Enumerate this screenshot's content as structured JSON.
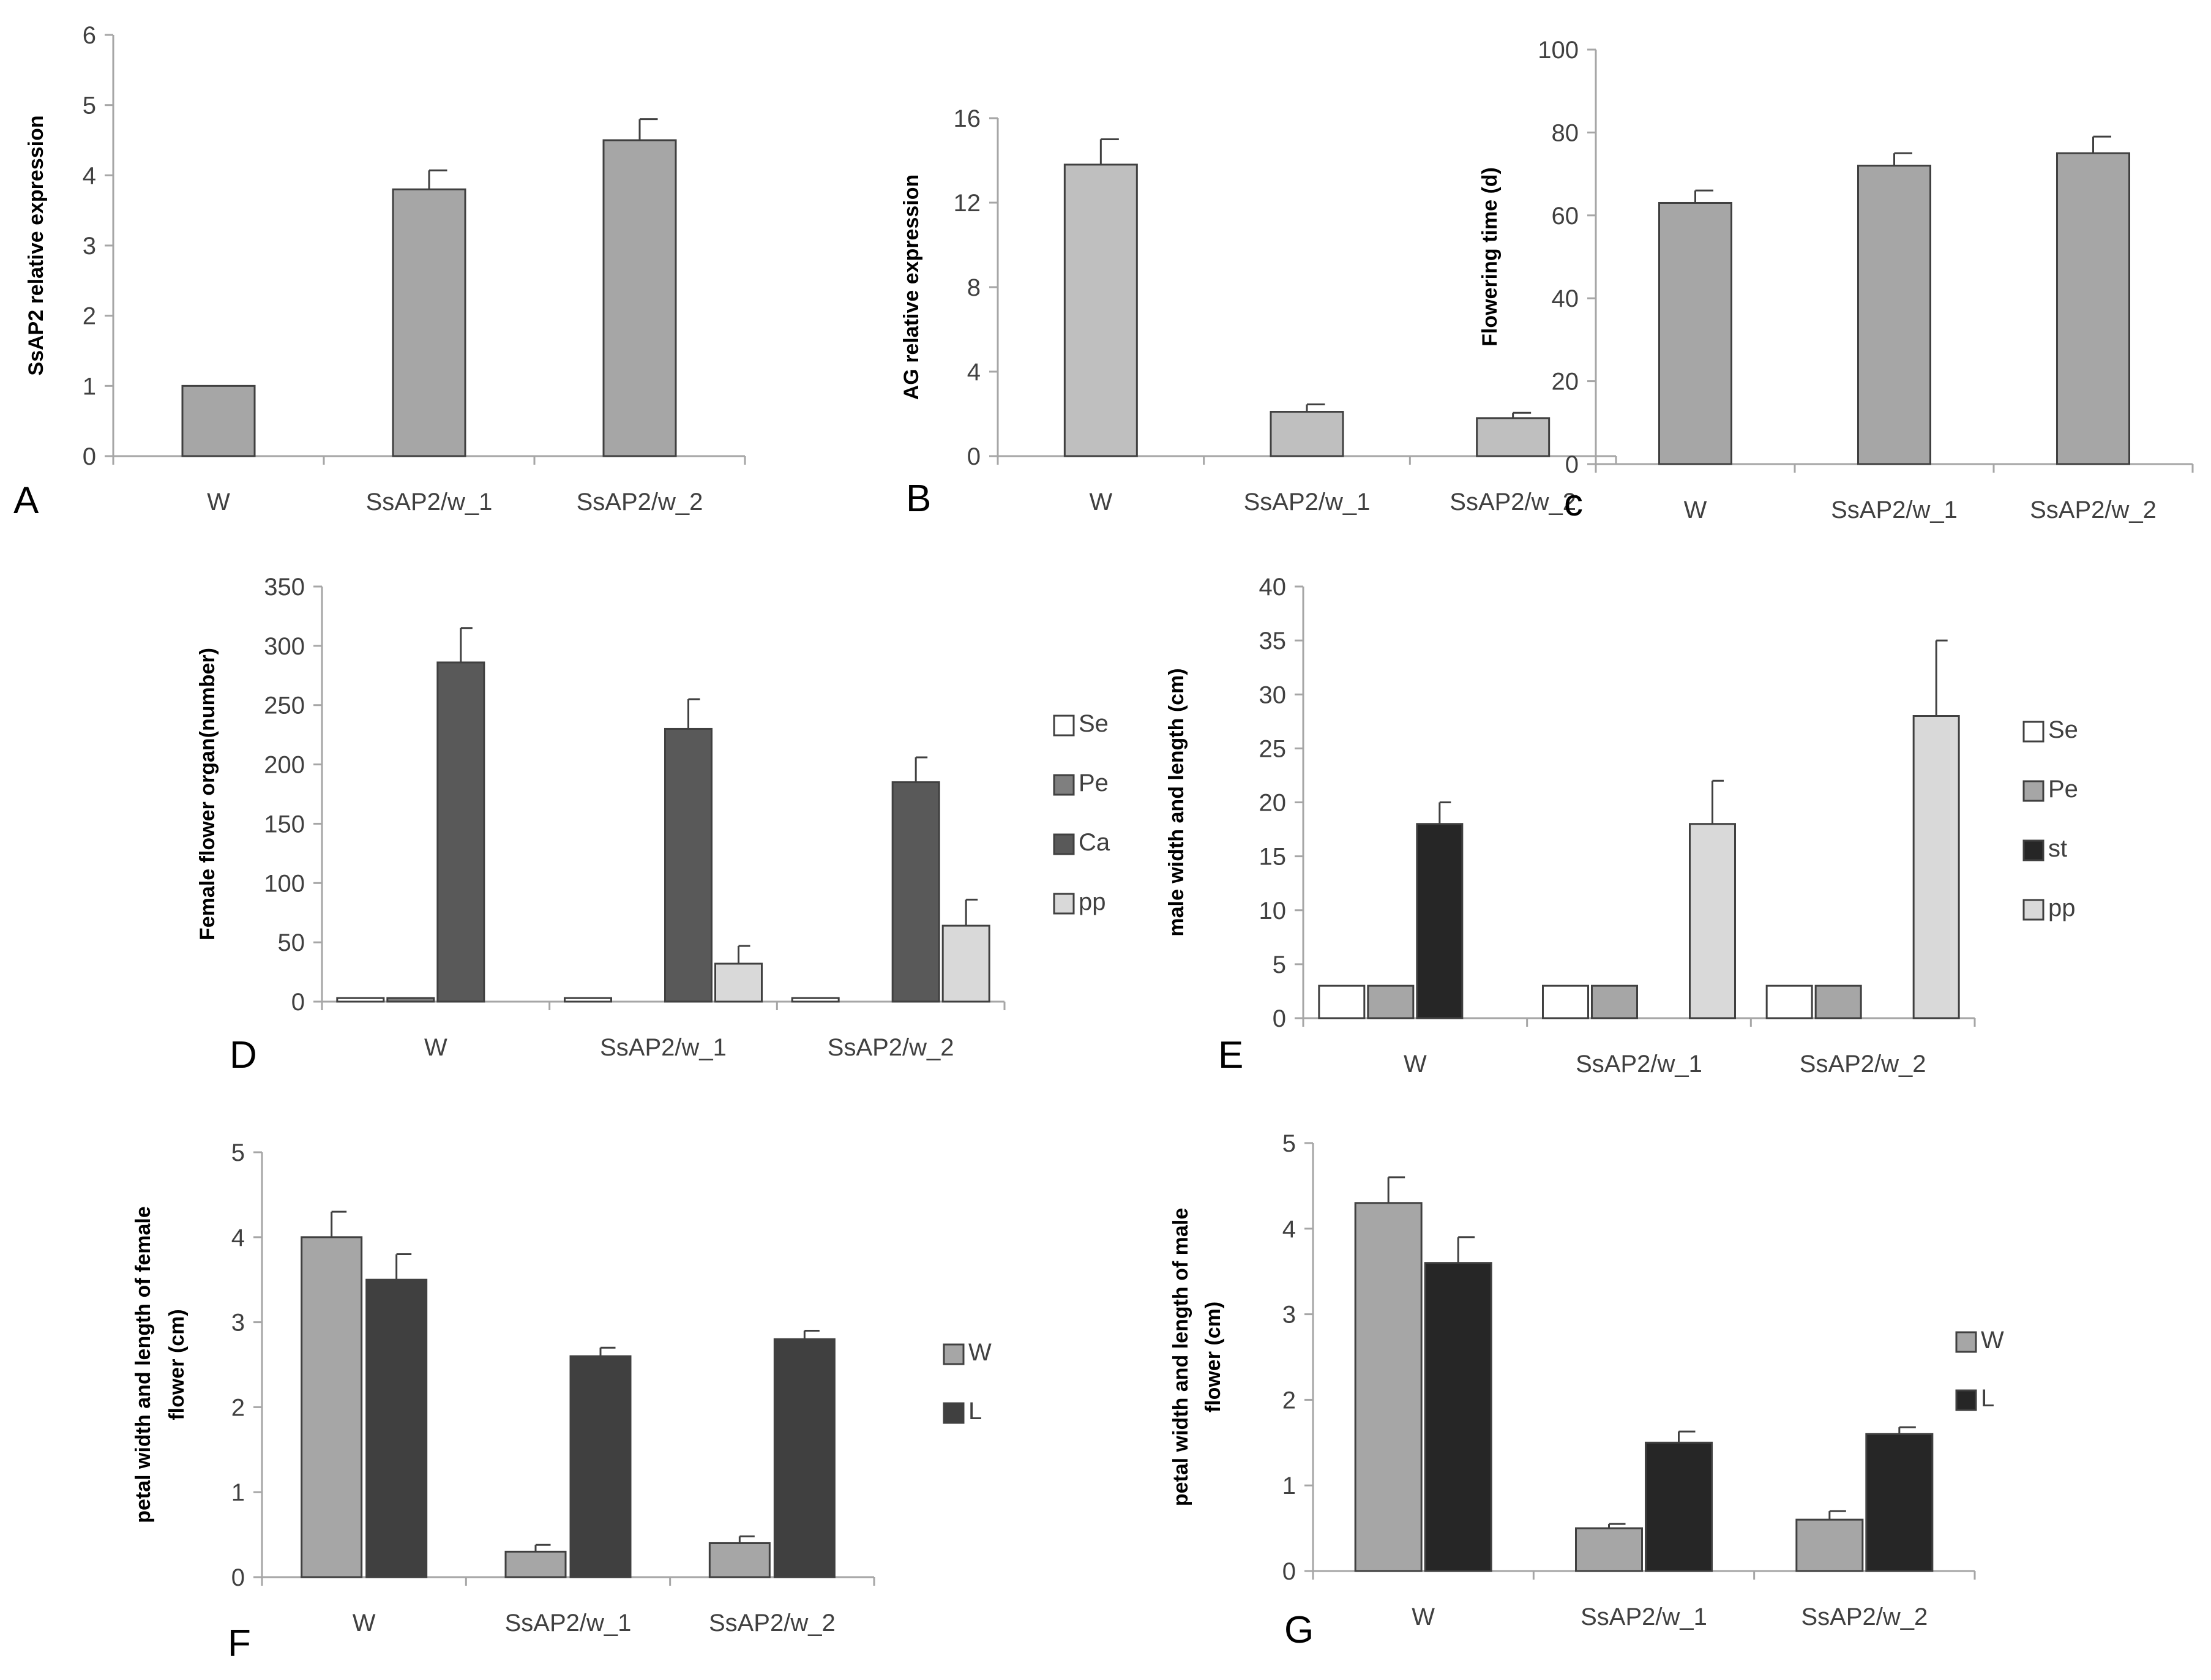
{
  "chart_data": [
    {
      "type": "bar",
      "panel_label": "A",
      "ylabel": "SsAP2  relative expression",
      "categories": [
        "W",
        "SsAP2/w_1",
        "SsAP2/w_2"
      ],
      "ylim": [
        0,
        6
      ],
      "yticks": [
        "0",
        "1",
        "2",
        "3",
        "4",
        "5",
        "6"
      ],
      "series": [
        {
          "values": [
            1.0,
            3.8,
            4.5
          ],
          "errors": [
            0,
            0.27,
            0.3
          ],
          "color": "#a6a6a6"
        }
      ]
    },
    {
      "type": "bar",
      "panel_label": "B",
      "ylabel": "AG  relative expression",
      "categories": [
        "W",
        "SsAP2/w_1",
        "SsAP2/w_2"
      ],
      "ylim": [
        0,
        16
      ],
      "yticks": [
        "0",
        "4",
        "8",
        "12",
        "16"
      ],
      "series": [
        {
          "values": [
            13.8,
            2.1,
            1.8
          ],
          "errors": [
            1.2,
            0.35,
            0.25
          ],
          "color": "#bfbfbf"
        }
      ]
    },
    {
      "type": "bar",
      "panel_label": "c",
      "ylabel": "Flowering  time (d)",
      "categories": [
        "W",
        "SsAP2/w_1",
        "SsAP2/w_2"
      ],
      "ylim": [
        0,
        100
      ],
      "yticks": [
        "0",
        "20",
        "40",
        "60",
        "80",
        "100"
      ],
      "series": [
        {
          "values": [
            63,
            72,
            75
          ],
          "errors": [
            3,
            3,
            4
          ],
          "color": "#a6a6a6"
        }
      ]
    },
    {
      "type": "bar",
      "panel_label": "D",
      "ylabel": "Female flower organ(number)",
      "categories": [
        "W",
        "SsAP2/w_1",
        "SsAP2/w_2"
      ],
      "ylim": [
        0,
        350
      ],
      "yticks": [
        "0",
        "50",
        "100",
        "150",
        "200",
        "250",
        "300",
        "350"
      ],
      "legend_position": "right",
      "series": [
        {
          "name": "Se",
          "values": [
            3,
            3,
            3
          ],
          "errors": [
            0,
            0,
            0
          ],
          "color": "#ffffff",
          "show_bar": [
            true,
            true,
            true
          ]
        },
        {
          "name": "Pe",
          "values": [
            3,
            0,
            0
          ],
          "errors": [
            0,
            0,
            0
          ],
          "color": "#7f7f7f",
          "show_bar": [
            true,
            false,
            false
          ]
        },
        {
          "name": "Ca",
          "values": [
            286,
            230,
            185
          ],
          "errors": [
            29,
            25,
            21
          ],
          "color": "#595959",
          "show_bar": [
            true,
            true,
            true
          ]
        },
        {
          "name": "pp",
          "values": [
            0,
            32,
            64
          ],
          "errors": [
            0,
            15,
            22
          ],
          "color": "#d9d9d9",
          "show_bar": [
            false,
            true,
            true
          ]
        }
      ]
    },
    {
      "type": "bar",
      "panel_label": "E",
      "ylabel": "male width and length (cm)",
      "categories": [
        "W",
        "SsAP2/w_1",
        "SsAP2/w_2"
      ],
      "ylim": [
        0,
        40
      ],
      "yticks": [
        "0",
        "5",
        "10",
        "15",
        "20",
        "25",
        "30",
        "35",
        "40"
      ],
      "legend_position": "right",
      "series": [
        {
          "name": "Se",
          "values": [
            3,
            3,
            3
          ],
          "errors": [
            0,
            0,
            0
          ],
          "color": "#ffffff",
          "show_bar": [
            true,
            true,
            true
          ]
        },
        {
          "name": "Pe",
          "values": [
            3,
            3,
            3
          ],
          "errors": [
            0,
            0,
            0
          ],
          "color": "#a6a6a6",
          "show_bar": [
            true,
            true,
            true
          ]
        },
        {
          "name": "st",
          "values": [
            18,
            0,
            0
          ],
          "errors": [
            2,
            0,
            0
          ],
          "color": "#262626",
          "show_bar": [
            true,
            false,
            false
          ]
        },
        {
          "name": "pp",
          "values": [
            0,
            18,
            28
          ],
          "errors": [
            0,
            4,
            7
          ],
          "color": "#d9d9d9",
          "show_bar": [
            false,
            true,
            true
          ]
        }
      ]
    },
    {
      "type": "bar",
      "panel_label": "F",
      "ylabel": "petal width and length of female flower (cm)",
      "ylabel_lines": [
        "petal width and length of female",
        "flower (cm)"
      ],
      "categories": [
        "W",
        "SsAP2/w_1",
        "SsAP2/w_2"
      ],
      "ylim": [
        0,
        5
      ],
      "yticks": [
        "0",
        "1",
        "2",
        "3",
        "4",
        "5"
      ],
      "legend_position": "right",
      "series": [
        {
          "name": "W",
          "values": [
            4.0,
            0.3,
            0.4
          ],
          "errors": [
            0.3,
            0.08,
            0.08
          ],
          "color": "#a6a6a6",
          "show_bar": [
            true,
            true,
            true
          ]
        },
        {
          "name": "L",
          "values": [
            3.5,
            2.6,
            2.8
          ],
          "errors": [
            0.3,
            0.1,
            0.1
          ],
          "color": "#404040",
          "show_bar": [
            true,
            true,
            true
          ]
        }
      ]
    },
    {
      "type": "bar",
      "panel_label": "G",
      "ylabel": "petal width and length of male flower (cm)",
      "ylabel_lines": [
        "petal width and length of  male",
        "flower (cm)"
      ],
      "categories": [
        "W",
        "SsAP2/w_1",
        "SsAP2/w_2"
      ],
      "ylim": [
        0,
        5
      ],
      "yticks": [
        "0",
        "1",
        "2",
        "3",
        "4",
        "5"
      ],
      "legend_position": "right",
      "series": [
        {
          "name": "W",
          "values": [
            4.3,
            0.5,
            0.6
          ],
          "errors": [
            0.3,
            0.05,
            0.1
          ],
          "color": "#a6a6a6",
          "show_bar": [
            true,
            true,
            true
          ]
        },
        {
          "name": "L",
          "values": [
            3.6,
            1.5,
            1.6
          ],
          "errors": [
            0.3,
            0.13,
            0.08
          ],
          "color": "#262626",
          "show_bar": [
            true,
            true,
            true
          ]
        }
      ]
    }
  ]
}
